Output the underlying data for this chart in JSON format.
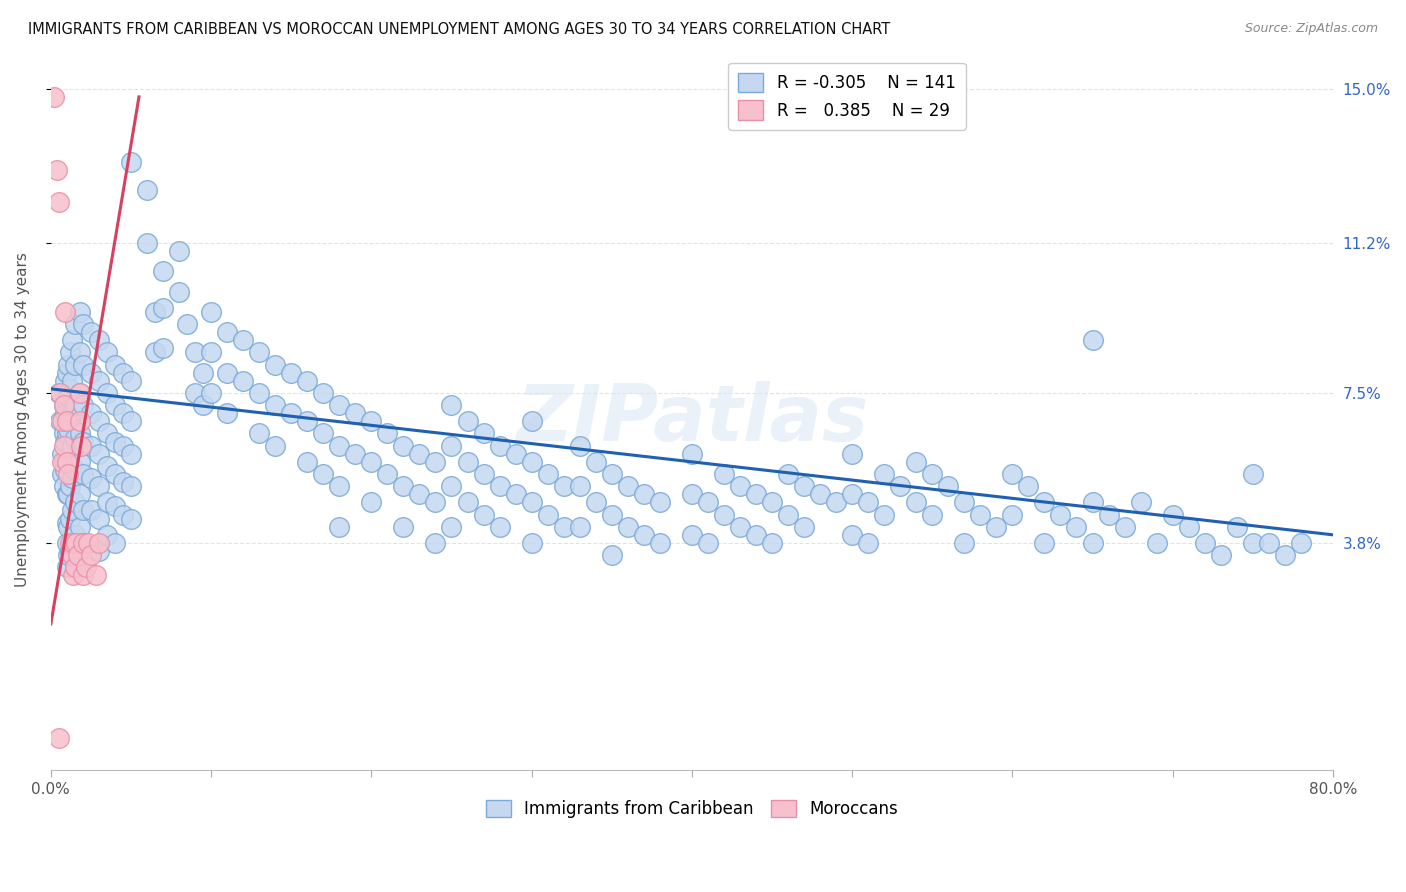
{
  "title": "IMMIGRANTS FROM CARIBBEAN VS MOROCCAN UNEMPLOYMENT AMONG AGES 30 TO 34 YEARS CORRELATION CHART",
  "source": "Source: ZipAtlas.com",
  "ylabel": "Unemployment Among Ages 30 to 34 years",
  "x_min": 0.0,
  "x_max": 0.8,
  "y_min": -0.018,
  "y_max": 0.155,
  "x_ticks": [
    0.0,
    0.1,
    0.2,
    0.3,
    0.4,
    0.5,
    0.6,
    0.7,
    0.8
  ],
  "x_tick_labels": [
    "0.0%",
    "",
    "",
    "",
    "",
    "",
    "",
    "",
    "80.0%"
  ],
  "y_tick_labels_right": [
    "3.8%",
    "7.5%",
    "11.2%",
    "15.0%"
  ],
  "y_ticks_right": [
    0.038,
    0.075,
    0.112,
    0.15
  ],
  "watermark": "ZIPatlas",
  "legend_blue_R": "-0.305",
  "legend_blue_N": "141",
  "legend_pink_R": "0.385",
  "legend_pink_N": "29",
  "blue_fill": "#c5d8f0",
  "blue_edge": "#7aaad8",
  "pink_fill": "#f8c0cc",
  "pink_edge": "#e890a8",
  "blue_line_color": "#2060b0",
  "pink_line_color": "#d84060",
  "grid_color": "#d8dde8",
  "blue_scatter": [
    [
      0.005,
      0.075
    ],
    [
      0.006,
      0.068
    ],
    [
      0.007,
      0.06
    ],
    [
      0.007,
      0.055
    ],
    [
      0.008,
      0.072
    ],
    [
      0.008,
      0.065
    ],
    [
      0.008,
      0.058
    ],
    [
      0.008,
      0.052
    ],
    [
      0.009,
      0.078
    ],
    [
      0.009,
      0.07
    ],
    [
      0.009,
      0.063
    ],
    [
      0.009,
      0.056
    ],
    [
      0.01,
      0.08
    ],
    [
      0.01,
      0.073
    ],
    [
      0.01,
      0.065
    ],
    [
      0.01,
      0.058
    ],
    [
      0.01,
      0.05
    ],
    [
      0.01,
      0.043
    ],
    [
      0.01,
      0.038
    ],
    [
      0.01,
      0.032
    ],
    [
      0.011,
      0.082
    ],
    [
      0.011,
      0.074
    ],
    [
      0.011,
      0.066
    ],
    [
      0.011,
      0.058
    ],
    [
      0.011,
      0.05
    ],
    [
      0.011,
      0.042
    ],
    [
      0.011,
      0.035
    ],
    [
      0.012,
      0.085
    ],
    [
      0.012,
      0.076
    ],
    [
      0.012,
      0.068
    ],
    [
      0.012,
      0.06
    ],
    [
      0.012,
      0.052
    ],
    [
      0.012,
      0.044
    ],
    [
      0.012,
      0.036
    ],
    [
      0.013,
      0.088
    ],
    [
      0.013,
      0.078
    ],
    [
      0.013,
      0.07
    ],
    [
      0.013,
      0.062
    ],
    [
      0.013,
      0.054
    ],
    [
      0.013,
      0.046
    ],
    [
      0.013,
      0.038
    ],
    [
      0.015,
      0.092
    ],
    [
      0.015,
      0.082
    ],
    [
      0.015,
      0.072
    ],
    [
      0.015,
      0.064
    ],
    [
      0.015,
      0.056
    ],
    [
      0.015,
      0.048
    ],
    [
      0.015,
      0.04
    ],
    [
      0.018,
      0.095
    ],
    [
      0.018,
      0.085
    ],
    [
      0.018,
      0.075
    ],
    [
      0.018,
      0.065
    ],
    [
      0.018,
      0.058
    ],
    [
      0.018,
      0.05
    ],
    [
      0.018,
      0.042
    ],
    [
      0.02,
      0.092
    ],
    [
      0.02,
      0.082
    ],
    [
      0.02,
      0.072
    ],
    [
      0.02,
      0.063
    ],
    [
      0.02,
      0.055
    ],
    [
      0.02,
      0.046
    ],
    [
      0.02,
      0.038
    ],
    [
      0.025,
      0.09
    ],
    [
      0.025,
      0.08
    ],
    [
      0.025,
      0.07
    ],
    [
      0.025,
      0.062
    ],
    [
      0.025,
      0.054
    ],
    [
      0.025,
      0.046
    ],
    [
      0.03,
      0.088
    ],
    [
      0.03,
      0.078
    ],
    [
      0.03,
      0.068
    ],
    [
      0.03,
      0.06
    ],
    [
      0.03,
      0.052
    ],
    [
      0.03,
      0.044
    ],
    [
      0.03,
      0.036
    ],
    [
      0.035,
      0.085
    ],
    [
      0.035,
      0.075
    ],
    [
      0.035,
      0.065
    ],
    [
      0.035,
      0.057
    ],
    [
      0.035,
      0.048
    ],
    [
      0.035,
      0.04
    ],
    [
      0.04,
      0.082
    ],
    [
      0.04,
      0.072
    ],
    [
      0.04,
      0.063
    ],
    [
      0.04,
      0.055
    ],
    [
      0.04,
      0.047
    ],
    [
      0.04,
      0.038
    ],
    [
      0.045,
      0.08
    ],
    [
      0.045,
      0.07
    ],
    [
      0.045,
      0.062
    ],
    [
      0.045,
      0.053
    ],
    [
      0.045,
      0.045
    ],
    [
      0.05,
      0.132
    ],
    [
      0.05,
      0.078
    ],
    [
      0.05,
      0.068
    ],
    [
      0.05,
      0.06
    ],
    [
      0.05,
      0.052
    ],
    [
      0.05,
      0.044
    ],
    [
      0.06,
      0.125
    ],
    [
      0.06,
      0.112
    ],
    [
      0.065,
      0.095
    ],
    [
      0.065,
      0.085
    ],
    [
      0.07,
      0.105
    ],
    [
      0.07,
      0.096
    ],
    [
      0.07,
      0.086
    ],
    [
      0.08,
      0.11
    ],
    [
      0.08,
      0.1
    ],
    [
      0.085,
      0.092
    ],
    [
      0.09,
      0.085
    ],
    [
      0.09,
      0.075
    ],
    [
      0.095,
      0.08
    ],
    [
      0.095,
      0.072
    ],
    [
      0.1,
      0.095
    ],
    [
      0.1,
      0.085
    ],
    [
      0.1,
      0.075
    ],
    [
      0.11,
      0.09
    ],
    [
      0.11,
      0.08
    ],
    [
      0.11,
      0.07
    ],
    [
      0.12,
      0.088
    ],
    [
      0.12,
      0.078
    ],
    [
      0.13,
      0.085
    ],
    [
      0.13,
      0.075
    ],
    [
      0.13,
      0.065
    ],
    [
      0.14,
      0.082
    ],
    [
      0.14,
      0.072
    ],
    [
      0.14,
      0.062
    ],
    [
      0.15,
      0.08
    ],
    [
      0.15,
      0.07
    ],
    [
      0.16,
      0.078
    ],
    [
      0.16,
      0.068
    ],
    [
      0.16,
      0.058
    ],
    [
      0.17,
      0.075
    ],
    [
      0.17,
      0.065
    ],
    [
      0.17,
      0.055
    ],
    [
      0.18,
      0.072
    ],
    [
      0.18,
      0.062
    ],
    [
      0.18,
      0.052
    ],
    [
      0.18,
      0.042
    ],
    [
      0.19,
      0.07
    ],
    [
      0.19,
      0.06
    ],
    [
      0.2,
      0.068
    ],
    [
      0.2,
      0.058
    ],
    [
      0.2,
      0.048
    ],
    [
      0.21,
      0.065
    ],
    [
      0.21,
      0.055
    ],
    [
      0.22,
      0.062
    ],
    [
      0.22,
      0.052
    ],
    [
      0.22,
      0.042
    ],
    [
      0.23,
      0.06
    ],
    [
      0.23,
      0.05
    ],
    [
      0.24,
      0.058
    ],
    [
      0.24,
      0.048
    ],
    [
      0.24,
      0.038
    ],
    [
      0.25,
      0.072
    ],
    [
      0.25,
      0.062
    ],
    [
      0.25,
      0.052
    ],
    [
      0.25,
      0.042
    ],
    [
      0.26,
      0.068
    ],
    [
      0.26,
      0.058
    ],
    [
      0.26,
      0.048
    ],
    [
      0.27,
      0.065
    ],
    [
      0.27,
      0.055
    ],
    [
      0.27,
      0.045
    ],
    [
      0.28,
      0.062
    ],
    [
      0.28,
      0.052
    ],
    [
      0.28,
      0.042
    ],
    [
      0.29,
      0.06
    ],
    [
      0.29,
      0.05
    ],
    [
      0.3,
      0.068
    ],
    [
      0.3,
      0.058
    ],
    [
      0.3,
      0.048
    ],
    [
      0.3,
      0.038
    ],
    [
      0.31,
      0.055
    ],
    [
      0.31,
      0.045
    ],
    [
      0.32,
      0.052
    ],
    [
      0.32,
      0.042
    ],
    [
      0.33,
      0.062
    ],
    [
      0.33,
      0.052
    ],
    [
      0.33,
      0.042
    ],
    [
      0.34,
      0.058
    ],
    [
      0.34,
      0.048
    ],
    [
      0.35,
      0.055
    ],
    [
      0.35,
      0.045
    ],
    [
      0.35,
      0.035
    ],
    [
      0.36,
      0.052
    ],
    [
      0.36,
      0.042
    ],
    [
      0.37,
      0.05
    ],
    [
      0.37,
      0.04
    ],
    [
      0.38,
      0.048
    ],
    [
      0.38,
      0.038
    ],
    [
      0.4,
      0.06
    ],
    [
      0.4,
      0.05
    ],
    [
      0.4,
      0.04
    ],
    [
      0.41,
      0.048
    ],
    [
      0.41,
      0.038
    ],
    [
      0.42,
      0.055
    ],
    [
      0.42,
      0.045
    ],
    [
      0.43,
      0.052
    ],
    [
      0.43,
      0.042
    ],
    [
      0.44,
      0.05
    ],
    [
      0.44,
      0.04
    ],
    [
      0.45,
      0.048
    ],
    [
      0.45,
      0.038
    ],
    [
      0.46,
      0.055
    ],
    [
      0.46,
      0.045
    ],
    [
      0.47,
      0.052
    ],
    [
      0.47,
      0.042
    ],
    [
      0.48,
      0.05
    ],
    [
      0.49,
      0.048
    ],
    [
      0.5,
      0.06
    ],
    [
      0.5,
      0.05
    ],
    [
      0.5,
      0.04
    ],
    [
      0.51,
      0.048
    ],
    [
      0.51,
      0.038
    ],
    [
      0.52,
      0.055
    ],
    [
      0.52,
      0.045
    ],
    [
      0.53,
      0.052
    ],
    [
      0.54,
      0.058
    ],
    [
      0.54,
      0.048
    ],
    [
      0.55,
      0.055
    ],
    [
      0.55,
      0.045
    ],
    [
      0.56,
      0.052
    ],
    [
      0.57,
      0.048
    ],
    [
      0.57,
      0.038
    ],
    [
      0.58,
      0.045
    ],
    [
      0.59,
      0.042
    ],
    [
      0.6,
      0.055
    ],
    [
      0.6,
      0.045
    ],
    [
      0.61,
      0.052
    ],
    [
      0.62,
      0.048
    ],
    [
      0.62,
      0.038
    ],
    [
      0.63,
      0.045
    ],
    [
      0.64,
      0.042
    ],
    [
      0.65,
      0.088
    ],
    [
      0.65,
      0.048
    ],
    [
      0.65,
      0.038
    ],
    [
      0.66,
      0.045
    ],
    [
      0.67,
      0.042
    ],
    [
      0.68,
      0.048
    ],
    [
      0.69,
      0.038
    ],
    [
      0.7,
      0.045
    ],
    [
      0.71,
      0.042
    ],
    [
      0.72,
      0.038
    ],
    [
      0.73,
      0.035
    ],
    [
      0.74,
      0.042
    ],
    [
      0.75,
      0.055
    ],
    [
      0.75,
      0.038
    ],
    [
      0.76,
      0.038
    ],
    [
      0.77,
      0.035
    ],
    [
      0.78,
      0.038
    ]
  ],
  "pink_scatter": [
    [
      0.002,
      0.148
    ],
    [
      0.004,
      0.13
    ],
    [
      0.005,
      0.122
    ],
    [
      0.006,
      0.075
    ],
    [
      0.007,
      0.068
    ],
    [
      0.007,
      0.058
    ],
    [
      0.008,
      0.072
    ],
    [
      0.008,
      0.062
    ],
    [
      0.009,
      0.095
    ],
    [
      0.01,
      0.068
    ],
    [
      0.01,
      0.058
    ],
    [
      0.011,
      0.055
    ],
    [
      0.012,
      0.038
    ],
    [
      0.013,
      0.035
    ],
    [
      0.014,
      0.038
    ],
    [
      0.014,
      0.03
    ],
    [
      0.015,
      0.032
    ],
    [
      0.016,
      0.038
    ],
    [
      0.017,
      0.035
    ],
    [
      0.018,
      0.075
    ],
    [
      0.018,
      0.068
    ],
    [
      0.019,
      0.062
    ],
    [
      0.02,
      0.038
    ],
    [
      0.02,
      0.03
    ],
    [
      0.022,
      0.032
    ],
    [
      0.023,
      0.038
    ],
    [
      0.025,
      0.035
    ],
    [
      0.028,
      0.03
    ],
    [
      0.03,
      0.038
    ],
    [
      0.005,
      -0.01
    ]
  ],
  "blue_line_x": [
    0.0,
    0.8
  ],
  "blue_line_y": [
    0.076,
    0.04
  ],
  "pink_line_x": [
    0.0,
    0.055
  ],
  "pink_line_y": [
    0.018,
    0.148
  ]
}
